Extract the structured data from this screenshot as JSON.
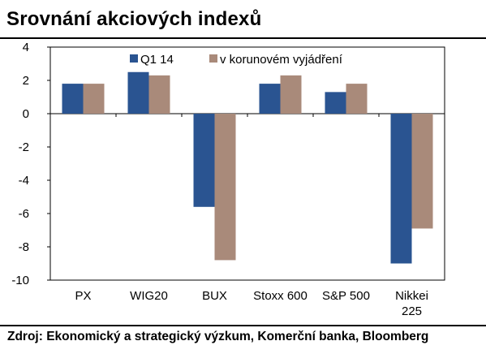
{
  "title": "Srovnání akciových indexů",
  "source": "Zdroj: Ekonomický a strategický výzkum, Komerční banka, Bloomberg",
  "chart_data": {
    "type": "bar",
    "categories": [
      [
        "PX"
      ],
      [
        "WIG20"
      ],
      [
        "BUX"
      ],
      [
        "Stoxx 600"
      ],
      [
        "S&P 500"
      ],
      [
        "Nikkei",
        "225"
      ]
    ],
    "series": [
      {
        "name": "Q1 14",
        "color": "#2A5491",
        "values": [
          1.8,
          2.5,
          -5.6,
          1.8,
          1.3,
          -9.0
        ]
      },
      {
        "name": "v korunovém vyjádření",
        "color": "#A98A7A",
        "values": [
          1.8,
          2.3,
          -8.8,
          2.3,
          1.8,
          -6.9
        ]
      }
    ],
    "ylim": [
      -10,
      4
    ],
    "yticks": [
      "4",
      "2",
      "0",
      "-2",
      "-4",
      "-6",
      "-8",
      "-10"
    ],
    "legend": "top-right",
    "grid": false
  }
}
